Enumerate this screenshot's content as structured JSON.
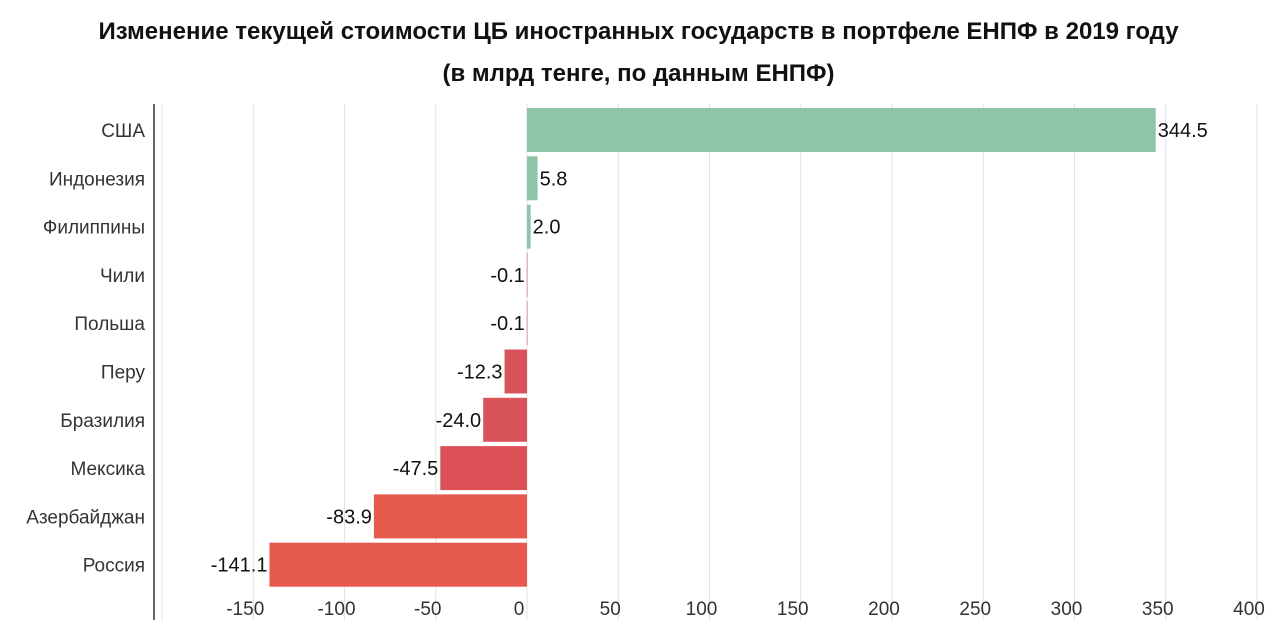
{
  "chart_data": {
    "type": "bar",
    "orientation": "horizontal",
    "title": "Изменение текущей стоимости ЦБ иностранных государств в портфеле ЕНПФ в 2019 году",
    "subtitle": "(в млрд тенге, по данным ЕНПФ)",
    "categories": [
      "США",
      "Индонезия",
      "Филиппины",
      "Чили",
      "Польша",
      "Перу",
      "Бразилия",
      "Мексика",
      "Азербайджан",
      "Россия"
    ],
    "values": [
      344.5,
      5.8,
      2.0,
      -0.1,
      -0.1,
      -12.3,
      -24.0,
      -47.5,
      -83.9,
      -141.1
    ],
    "value_labels": [
      "344.5",
      "5.8",
      "2.0",
      "-0.1",
      "-0.1",
      "-12.3",
      "-24.0",
      "-47.5",
      "-83.9",
      "-141.1"
    ],
    "xlim": [
      -200,
      400
    ],
    "xticks": [
      -150,
      -100,
      -50,
      0,
      50,
      100,
      150,
      200,
      250,
      300,
      350,
      400
    ],
    "grid": true,
    "positive_color": "#8fc4a8",
    "negative_colors": [
      "#d9545c",
      "#d9545c",
      "#d9535a",
      "#d9535a",
      "#db5157",
      "#e65a4d"
    ]
  }
}
